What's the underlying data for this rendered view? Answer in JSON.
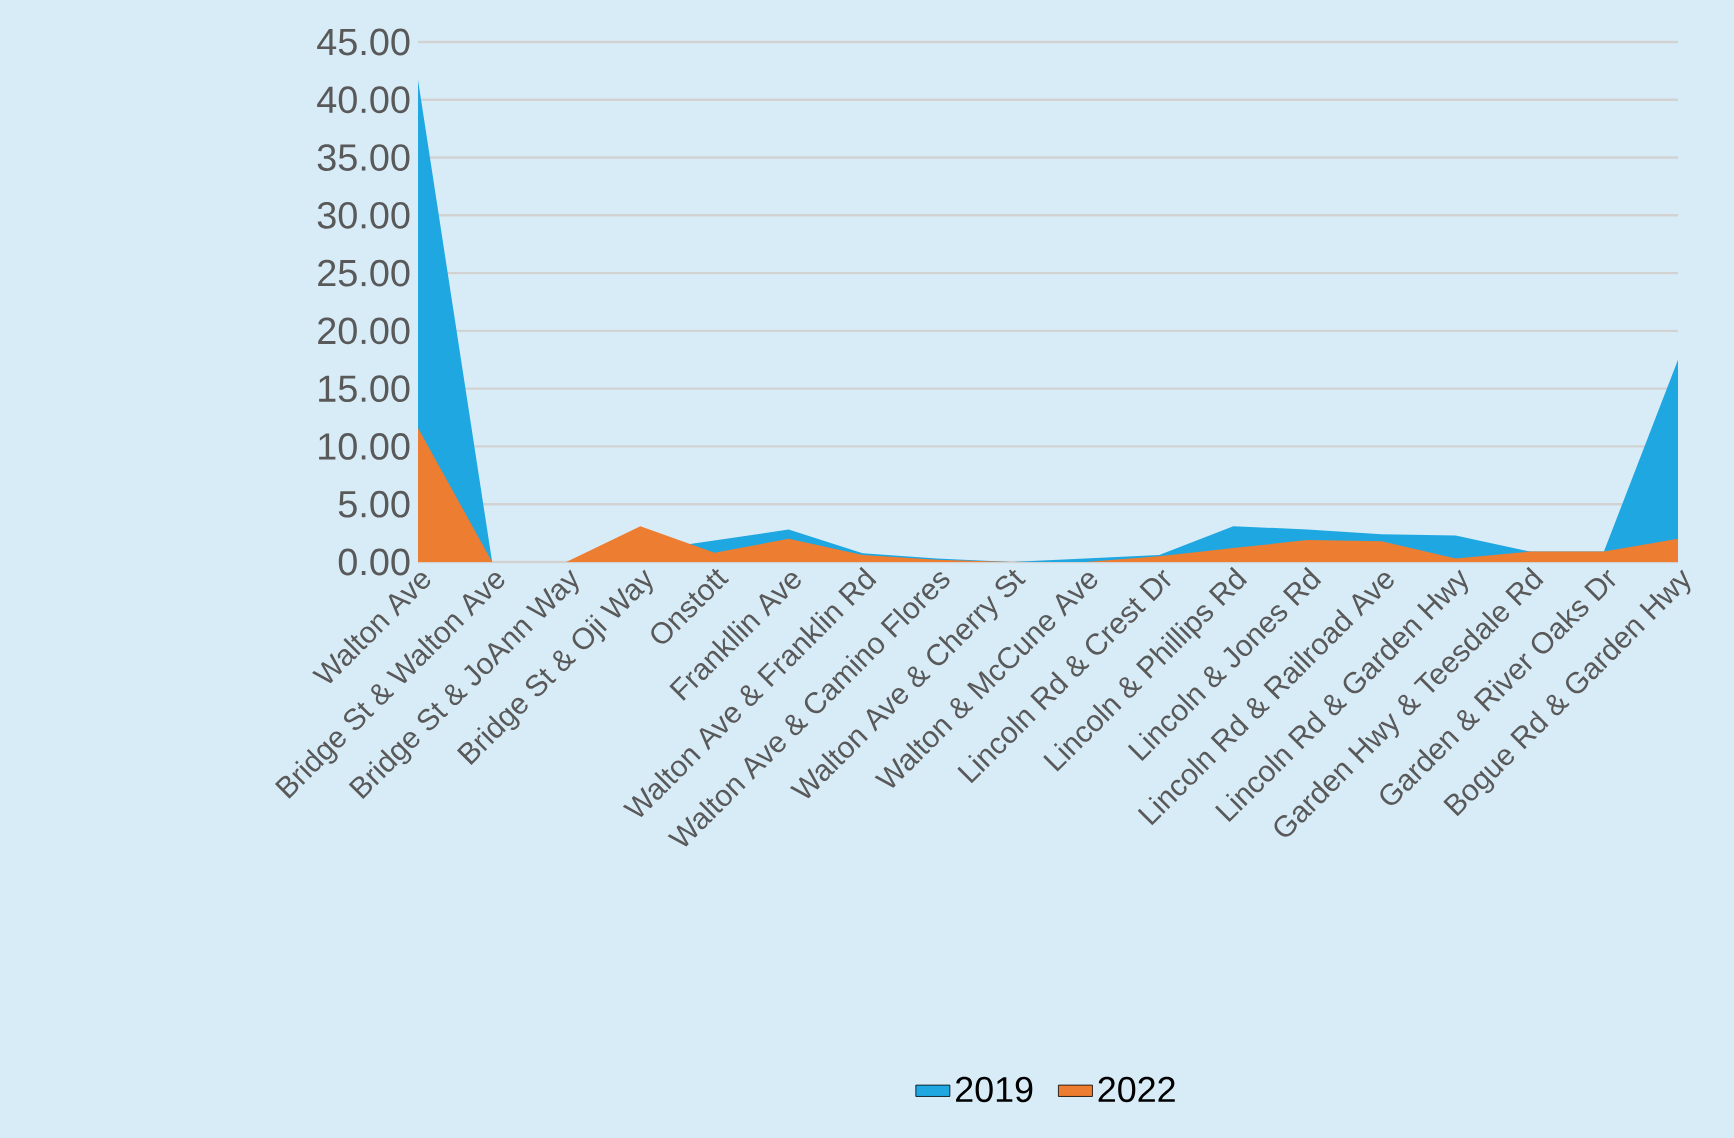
{
  "chart_data": {
    "type": "area",
    "categories": [
      "Walton Ave",
      "Bridge St & Walton Ave",
      "Bridge St & JoAnn Way",
      "Bridge St & Oji Way",
      "Onstott",
      "Frankllin Ave",
      "Walton Ave & Franklin Rd",
      "Walton Ave & Camino Flores",
      "Walton Ave & Cherry St",
      "Walton & McCune Ave",
      "Lincoln Rd & Crest Dr",
      "Lincoln & Phillips Rd",
      "Lincoln & Jones Rd",
      "Lincoln Rd & Railroad Ave",
      "Lincoln Rd & Garden Hwy",
      "Garden Hwy & Teesdale Rd",
      "Garden & River Oaks Dr",
      "Bogue Rd & Garden Hwy"
    ],
    "series": [
      {
        "name": "2019",
        "color": "#1fa7e1",
        "values": [
          41.7,
          0,
          0,
          null,
          null,
          2.8,
          0.75,
          0.3,
          0,
          0.3,
          0.6,
          3.1,
          2.8,
          2.4,
          2.3,
          0.9,
          0.9,
          17.5
        ]
      },
      {
        "name": "2022",
        "color": "#ed7d31",
        "values": [
          11.6,
          0,
          0,
          3.1,
          0.8,
          2.0,
          0.6,
          0.2,
          0,
          0,
          0.5,
          1.2,
          1.9,
          1.8,
          0.3,
          0.9,
          0.9,
          2.0
        ]
      }
    ],
    "ylim": [
      0,
      45
    ],
    "yticks": [
      {
        "value": 0,
        "label": "0.00"
      },
      {
        "value": 5,
        "label": "5.00"
      },
      {
        "value": 10,
        "label": "10.00"
      },
      {
        "value": 15,
        "label": "15.00"
      },
      {
        "value": 20,
        "label": "20.00"
      },
      {
        "value": 25,
        "label": "25.00"
      },
      {
        "value": 30,
        "label": "30.00"
      },
      {
        "value": 35,
        "label": "35.00"
      },
      {
        "value": 40,
        "label": "40.00"
      },
      {
        "value": 45,
        "label": "45.00"
      }
    ],
    "grid": "y",
    "legend": "bottom"
  }
}
